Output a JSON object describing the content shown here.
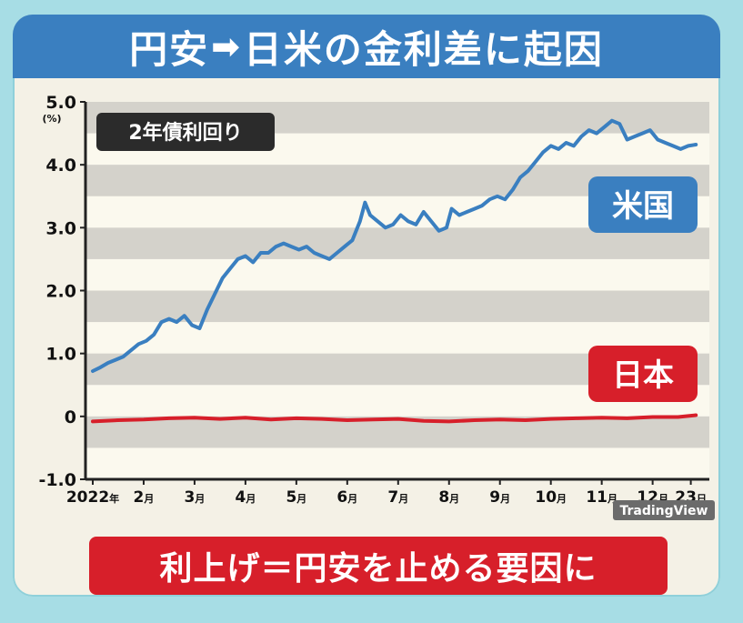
{
  "title": {
    "left": "円安",
    "arrow": "➡",
    "right": "日米の金利差に起因"
  },
  "footer": "利上げ＝円安を止める要因に",
  "watermark": "TradingView",
  "chart_data": {
    "type": "line",
    "title": "",
    "tag": "2年債利回り",
    "ylabel": "",
    "y_unit": "(%)",
    "ylim": [
      -1.0,
      5.0
    ],
    "y_ticks": [
      "5.0",
      "4.0",
      "3.0",
      "2.0",
      "1.0",
      "0",
      "-1.0"
    ],
    "y_tick_values": [
      5,
      4,
      3,
      2,
      1,
      0,
      -1
    ],
    "x_ticks": [
      {
        "num": "2022",
        "unit": "年",
        "x": 0
      },
      {
        "num": "2",
        "unit": "月",
        "x": 1
      },
      {
        "num": "3",
        "unit": "月",
        "x": 2
      },
      {
        "num": "4",
        "unit": "月",
        "x": 3
      },
      {
        "num": "5",
        "unit": "月",
        "x": 4
      },
      {
        "num": "6",
        "unit": "月",
        "x": 5
      },
      {
        "num": "7",
        "unit": "月",
        "x": 6
      },
      {
        "num": "8",
        "unit": "月",
        "x": 7
      },
      {
        "num": "9",
        "unit": "月",
        "x": 8
      },
      {
        "num": "10",
        "unit": "月",
        "x": 9
      },
      {
        "num": "11",
        "unit": "月",
        "x": 10
      },
      {
        "num": "12",
        "unit": "月",
        "x": 11
      },
      {
        "num": "23",
        "unit": "日",
        "x": 11.75
      }
    ],
    "xlim": [
      0,
      11.9
    ],
    "grid": "horizontal bands",
    "series": [
      {
        "name": "米国",
        "color": "#3a7fc0",
        "points": [
          [
            0,
            0.72
          ],
          [
            0.15,
            0.78
          ],
          [
            0.3,
            0.85
          ],
          [
            0.45,
            0.9
          ],
          [
            0.6,
            0.95
          ],
          [
            0.75,
            1.05
          ],
          [
            0.9,
            1.15
          ],
          [
            1.05,
            1.2
          ],
          [
            1.2,
            1.3
          ],
          [
            1.35,
            1.5
          ],
          [
            1.5,
            1.55
          ],
          [
            1.65,
            1.5
          ],
          [
            1.8,
            1.6
          ],
          [
            1.95,
            1.45
          ],
          [
            2.1,
            1.4
          ],
          [
            2.25,
            1.7
          ],
          [
            2.4,
            1.95
          ],
          [
            2.55,
            2.2
          ],
          [
            2.7,
            2.35
          ],
          [
            2.85,
            2.5
          ],
          [
            3.0,
            2.55
          ],
          [
            3.15,
            2.45
          ],
          [
            3.3,
            2.6
          ],
          [
            3.45,
            2.6
          ],
          [
            3.6,
            2.7
          ],
          [
            3.75,
            2.75
          ],
          [
            3.9,
            2.7
          ],
          [
            4.05,
            2.65
          ],
          [
            4.2,
            2.7
          ],
          [
            4.35,
            2.6
          ],
          [
            4.5,
            2.55
          ],
          [
            4.65,
            2.5
          ],
          [
            4.8,
            2.6
          ],
          [
            4.95,
            2.7
          ],
          [
            5.1,
            2.8
          ],
          [
            5.25,
            3.1
          ],
          [
            5.35,
            3.4
          ],
          [
            5.45,
            3.2
          ],
          [
            5.6,
            3.1
          ],
          [
            5.75,
            3.0
          ],
          [
            5.9,
            3.05
          ],
          [
            6.05,
            3.2
          ],
          [
            6.2,
            3.1
          ],
          [
            6.35,
            3.05
          ],
          [
            6.5,
            3.25
          ],
          [
            6.65,
            3.1
          ],
          [
            6.8,
            2.95
          ],
          [
            6.95,
            3.0
          ],
          [
            7.05,
            3.3
          ],
          [
            7.2,
            3.2
          ],
          [
            7.35,
            3.25
          ],
          [
            7.5,
            3.3
          ],
          [
            7.65,
            3.35
          ],
          [
            7.8,
            3.45
          ],
          [
            7.95,
            3.5
          ],
          [
            8.1,
            3.45
          ],
          [
            8.25,
            3.6
          ],
          [
            8.4,
            3.8
          ],
          [
            8.55,
            3.9
          ],
          [
            8.7,
            4.05
          ],
          [
            8.85,
            4.2
          ],
          [
            9.0,
            4.3
          ],
          [
            9.15,
            4.25
          ],
          [
            9.3,
            4.35
          ],
          [
            9.45,
            4.3
          ],
          [
            9.6,
            4.45
          ],
          [
            9.75,
            4.55
          ],
          [
            9.9,
            4.5
          ],
          [
            10.05,
            4.6
          ],
          [
            10.2,
            4.7
          ],
          [
            10.35,
            4.65
          ],
          [
            10.5,
            4.4
          ],
          [
            10.65,
            4.45
          ],
          [
            10.8,
            4.5
          ],
          [
            10.95,
            4.55
          ],
          [
            11.1,
            4.4
          ],
          [
            11.25,
            4.35
          ],
          [
            11.4,
            4.3
          ],
          [
            11.55,
            4.25
          ],
          [
            11.7,
            4.3
          ],
          [
            11.85,
            4.32
          ]
        ]
      },
      {
        "name": "日本",
        "color": "#d71f2a",
        "points": [
          [
            0,
            -0.08
          ],
          [
            0.5,
            -0.06
          ],
          [
            1.0,
            -0.05
          ],
          [
            1.5,
            -0.03
          ],
          [
            2.0,
            -0.02
          ],
          [
            2.5,
            -0.04
          ],
          [
            3.0,
            -0.02
          ],
          [
            3.5,
            -0.05
          ],
          [
            4.0,
            -0.03
          ],
          [
            4.5,
            -0.04
          ],
          [
            5.0,
            -0.06
          ],
          [
            5.5,
            -0.05
          ],
          [
            6.0,
            -0.04
          ],
          [
            6.5,
            -0.07
          ],
          [
            7.0,
            -0.08
          ],
          [
            7.5,
            -0.06
          ],
          [
            8.0,
            -0.05
          ],
          [
            8.5,
            -0.06
          ],
          [
            9.0,
            -0.04
          ],
          [
            9.5,
            -0.03
          ],
          [
            10.0,
            -0.02
          ],
          [
            10.5,
            -0.03
          ],
          [
            11.0,
            -0.01
          ],
          [
            11.5,
            -0.01
          ],
          [
            11.85,
            0.02
          ]
        ]
      }
    ]
  }
}
